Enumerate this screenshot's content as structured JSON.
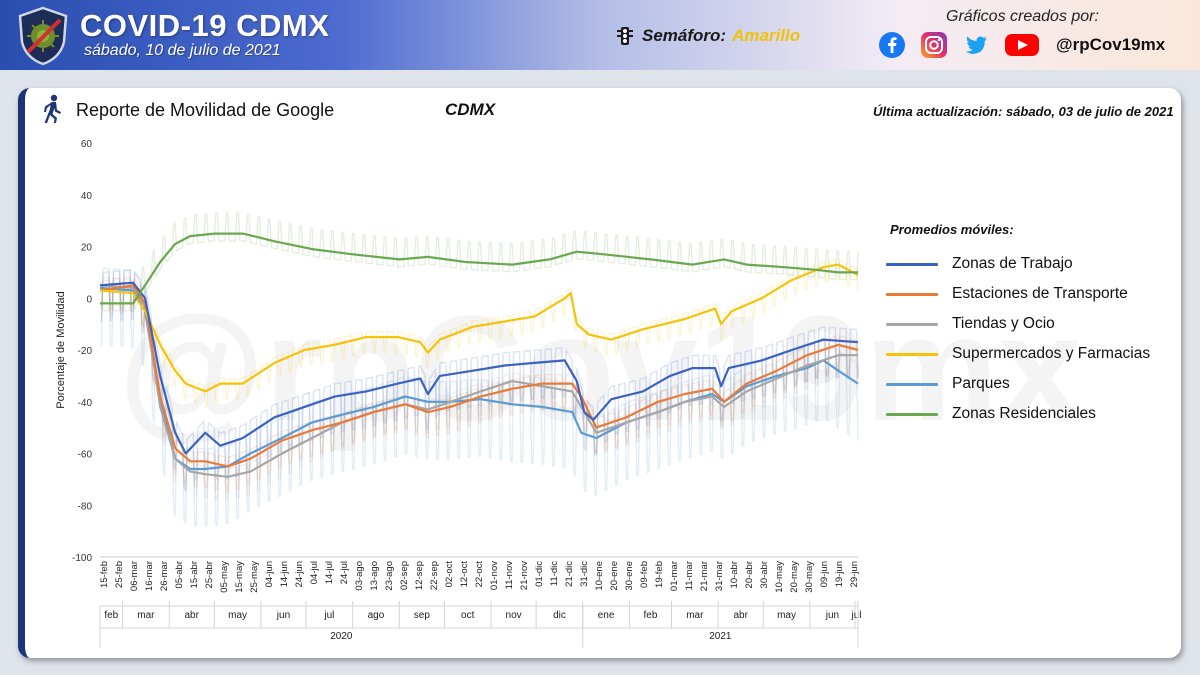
{
  "header": {
    "title": "COVID-19 CDMX",
    "date": "sábado, 10 de julio de 2021",
    "semaforo_label": "Semáforo:",
    "semaforo_value": "Amarillo",
    "credits": "Gráficos creados por:",
    "handle": "@rpCov19mx"
  },
  "card": {
    "title": "Reporte de Movilidad de Google",
    "region": "CDMX",
    "update": "Última actualización: sábado, 03 de julio de 2021",
    "watermark": "@rpCov19mx"
  },
  "colors": {
    "trabajo": "#3a62c0",
    "transporte": "#ea7a37",
    "tiendas": "#a6a6a6",
    "supermercados": "#f6c20c",
    "parques": "#5b9bd5",
    "residenciales": "#6aa84f"
  },
  "chart_data": {
    "type": "line",
    "title": "Reporte de Movilidad de Google",
    "ylabel": "Porcentaje de Movilidad",
    "xlabel": "",
    "ylim": [
      -100,
      60
    ],
    "yticks": [
      -100,
      -80,
      -60,
      -40,
      -20,
      0,
      20,
      40,
      60
    ],
    "date_range": [
      "2020-02-15",
      "2021-07-03"
    ],
    "x_ticks": [
      "15-feb",
      "25-feb",
      "06-mar",
      "16-mar",
      "26-mar",
      "05-abr",
      "15-abr",
      "25-abr",
      "05-may",
      "15-may",
      "25-may",
      "04-jun",
      "14-jun",
      "24-jun",
      "04-jul",
      "14-jul",
      "24-jul",
      "03-ago",
      "13-ago",
      "23-ago",
      "02-sep",
      "12-sep",
      "22-sep",
      "02-oct",
      "12-oct",
      "22-oct",
      "01-nov",
      "11-nov",
      "21-nov",
      "01-dic",
      "11-dic",
      "21-dic",
      "31-dic",
      "10-ene",
      "20-ene",
      "30-ene",
      "09-feb",
      "19-feb",
      "01-mar",
      "11-mar",
      "21-mar",
      "31-mar",
      "10-abr",
      "20-abr",
      "30-abr",
      "10-may",
      "20-may",
      "30-may",
      "09-jun",
      "19-jun",
      "29-jun"
    ],
    "months": [
      {
        "label": "feb",
        "start": "2020-02-15",
        "end": "2020-03-01"
      },
      {
        "label": "mar",
        "start": "2020-03-01",
        "end": "2020-04-01"
      },
      {
        "label": "abr",
        "start": "2020-04-01",
        "end": "2020-05-01"
      },
      {
        "label": "may",
        "start": "2020-05-01",
        "end": "2020-06-01"
      },
      {
        "label": "jun",
        "start": "2020-06-01",
        "end": "2020-07-01"
      },
      {
        "label": "jul",
        "start": "2020-07-01",
        "end": "2020-08-01"
      },
      {
        "label": "ago",
        "start": "2020-08-01",
        "end": "2020-09-01"
      },
      {
        "label": "sep",
        "start": "2020-09-01",
        "end": "2020-10-01"
      },
      {
        "label": "oct",
        "start": "2020-10-01",
        "end": "2020-11-01"
      },
      {
        "label": "nov",
        "start": "2020-11-01",
        "end": "2020-12-01"
      },
      {
        "label": "dic",
        "start": "2020-12-01",
        "end": "2021-01-01"
      },
      {
        "label": "ene",
        "start": "2021-01-01",
        "end": "2021-02-01"
      },
      {
        "label": "feb",
        "start": "2021-02-01",
        "end": "2021-03-01"
      },
      {
        "label": "mar",
        "start": "2021-03-01",
        "end": "2021-04-01"
      },
      {
        "label": "abr",
        "start": "2021-04-01",
        "end": "2021-05-01"
      },
      {
        "label": "may",
        "start": "2021-05-01",
        "end": "2021-06-01"
      },
      {
        "label": "jun",
        "start": "2021-06-01",
        "end": "2021-07-01"
      },
      {
        "label": "jul",
        "start": "2021-07-01",
        "end": "2021-07-04"
      }
    ],
    "years": [
      {
        "label": "2020",
        "start": "2020-02-15",
        "end": "2021-01-01"
      },
      {
        "label": "2021",
        "start": "2021-01-01",
        "end": "2021-07-04"
      }
    ],
    "legend_title": "Promedios móviles:",
    "series": [
      {
        "key": "trabajo",
        "name": "Zonas de Trabajo",
        "points": [
          [
            "2020-02-15",
            5
          ],
          [
            "2020-03-08",
            6
          ],
          [
            "2020-03-16",
            0
          ],
          [
            "2020-03-26",
            -30
          ],
          [
            "2020-04-05",
            -52
          ],
          [
            "2020-04-12",
            -60
          ],
          [
            "2020-04-25",
            -52
          ],
          [
            "2020-05-05",
            -57
          ],
          [
            "2020-05-20",
            -54
          ],
          [
            "2020-06-10",
            -46
          ],
          [
            "2020-06-30",
            -42
          ],
          [
            "2020-07-20",
            -38
          ],
          [
            "2020-08-10",
            -36
          ],
          [
            "2020-08-31",
            -33
          ],
          [
            "2020-09-15",
            -31
          ],
          [
            "2020-09-20",
            -37
          ],
          [
            "2020-09-28",
            -30
          ],
          [
            "2020-10-20",
            -28
          ],
          [
            "2020-11-10",
            -26
          ],
          [
            "2020-11-30",
            -25
          ],
          [
            "2020-12-20",
            -24
          ],
          [
            "2020-12-28",
            -32
          ],
          [
            "2021-01-02",
            -44
          ],
          [
            "2021-01-08",
            -47
          ],
          [
            "2021-01-20",
            -39
          ],
          [
            "2021-02-10",
            -36
          ],
          [
            "2021-02-28",
            -30
          ],
          [
            "2021-03-15",
            -27
          ],
          [
            "2021-03-30",
            -27
          ],
          [
            "2021-04-03",
            -34
          ],
          [
            "2021-04-08",
            -27
          ],
          [
            "2021-04-30",
            -24
          ],
          [
            "2021-05-20",
            -20
          ],
          [
            "2021-06-10",
            -16
          ],
          [
            "2021-07-03",
            -17
          ]
        ]
      },
      {
        "key": "transporte",
        "name": "Estaciones de Transporte",
        "points": [
          [
            "2020-02-15",
            3
          ],
          [
            "2020-03-08",
            5
          ],
          [
            "2020-03-16",
            -2
          ],
          [
            "2020-03-26",
            -38
          ],
          [
            "2020-04-05",
            -58
          ],
          [
            "2020-04-15",
            -63
          ],
          [
            "2020-04-25",
            -63
          ],
          [
            "2020-05-10",
            -65
          ],
          [
            "2020-05-25",
            -62
          ],
          [
            "2020-06-15",
            -55
          ],
          [
            "2020-07-05",
            -51
          ],
          [
            "2020-07-25",
            -48
          ],
          [
            "2020-08-15",
            -44
          ],
          [
            "2020-09-05",
            -41
          ],
          [
            "2020-09-20",
            -44
          ],
          [
            "2020-10-05",
            -42
          ],
          [
            "2020-10-25",
            -38
          ],
          [
            "2020-11-15",
            -35
          ],
          [
            "2020-12-05",
            -33
          ],
          [
            "2020-12-25",
            -33
          ],
          [
            "2020-12-31",
            -38
          ],
          [
            "2021-01-10",
            -50
          ],
          [
            "2021-01-30",
            -46
          ],
          [
            "2021-02-20",
            -40
          ],
          [
            "2021-03-10",
            -37
          ],
          [
            "2021-03-28",
            -35
          ],
          [
            "2021-04-05",
            -40
          ],
          [
            "2021-04-20",
            -33
          ],
          [
            "2021-05-10",
            -28
          ],
          [
            "2021-05-30",
            -22
          ],
          [
            "2021-06-20",
            -18
          ],
          [
            "2021-07-03",
            -20
          ]
        ]
      },
      {
        "key": "tiendas",
        "name": "Tiendas y Ocio",
        "points": [
          [
            "2020-02-15",
            5
          ],
          [
            "2020-03-08",
            4
          ],
          [
            "2020-03-16",
            -3
          ],
          [
            "2020-03-26",
            -42
          ],
          [
            "2020-04-05",
            -62
          ],
          [
            "2020-04-15",
            -67
          ],
          [
            "2020-04-25",
            -68
          ],
          [
            "2020-05-10",
            -69
          ],
          [
            "2020-05-25",
            -67
          ],
          [
            "2020-06-15",
            -60
          ],
          [
            "2020-07-05",
            -54
          ],
          [
            "2020-07-25",
            -48
          ],
          [
            "2020-08-15",
            -44
          ],
          [
            "2020-09-05",
            -41
          ],
          [
            "2020-09-20",
            -43
          ],
          [
            "2020-10-05",
            -40
          ],
          [
            "2020-10-25",
            -36
          ],
          [
            "2020-11-15",
            -32
          ],
          [
            "2020-12-05",
            -34
          ],
          [
            "2020-12-25",
            -36
          ],
          [
            "2020-12-31",
            -42
          ],
          [
            "2021-01-10",
            -52
          ],
          [
            "2021-01-30",
            -48
          ],
          [
            "2021-02-20",
            -44
          ],
          [
            "2021-03-10",
            -40
          ],
          [
            "2021-03-28",
            -38
          ],
          [
            "2021-04-05",
            -42
          ],
          [
            "2021-04-20",
            -36
          ],
          [
            "2021-05-10",
            -31
          ],
          [
            "2021-05-30",
            -26
          ],
          [
            "2021-06-20",
            -22
          ],
          [
            "2021-07-03",
            -22
          ]
        ]
      },
      {
        "key": "supermercados",
        "name": "Supermercados y Farmacias",
        "points": [
          [
            "2020-02-15",
            3
          ],
          [
            "2020-03-08",
            2
          ],
          [
            "2020-03-16",
            -5
          ],
          [
            "2020-03-26",
            -18
          ],
          [
            "2020-04-05",
            -28
          ],
          [
            "2020-04-12",
            -33
          ],
          [
            "2020-04-25",
            -36
          ],
          [
            "2020-05-05",
            -33
          ],
          [
            "2020-05-20",
            -33
          ],
          [
            "2020-06-10",
            -25
          ],
          [
            "2020-06-30",
            -20
          ],
          [
            "2020-07-20",
            -18
          ],
          [
            "2020-08-10",
            -15
          ],
          [
            "2020-08-31",
            -15
          ],
          [
            "2020-09-15",
            -17
          ],
          [
            "2020-09-20",
            -21
          ],
          [
            "2020-09-28",
            -16
          ],
          [
            "2020-10-20",
            -11
          ],
          [
            "2020-11-10",
            -9
          ],
          [
            "2020-11-30",
            -7
          ],
          [
            "2020-12-20",
            0
          ],
          [
            "2020-12-24",
            2
          ],
          [
            "2020-12-28",
            -10
          ],
          [
            "2021-01-05",
            -14
          ],
          [
            "2021-01-20",
            -16
          ],
          [
            "2021-02-10",
            -12
          ],
          [
            "2021-03-10",
            -8
          ],
          [
            "2021-03-30",
            -4
          ],
          [
            "2021-04-03",
            -10
          ],
          [
            "2021-04-10",
            -5
          ],
          [
            "2021-04-30",
            0
          ],
          [
            "2021-05-20",
            7
          ],
          [
            "2021-06-10",
            12
          ],
          [
            "2021-06-20",
            13
          ],
          [
            "2021-07-03",
            9
          ]
        ]
      },
      {
        "key": "parques",
        "name": "Parques",
        "points": [
          [
            "2020-02-15",
            4
          ],
          [
            "2020-03-08",
            3
          ],
          [
            "2020-03-16",
            -5
          ],
          [
            "2020-03-26",
            -40
          ],
          [
            "2020-04-05",
            -62
          ],
          [
            "2020-04-15",
            -66
          ],
          [
            "2020-04-25",
            -66
          ],
          [
            "2020-05-10",
            -65
          ],
          [
            "2020-05-25",
            -60
          ],
          [
            "2020-06-15",
            -54
          ],
          [
            "2020-07-05",
            -48
          ],
          [
            "2020-07-25",
            -45
          ],
          [
            "2020-08-15",
            -42
          ],
          [
            "2020-09-05",
            -38
          ],
          [
            "2020-09-20",
            -40
          ],
          [
            "2020-10-05",
            -40
          ],
          [
            "2020-10-25",
            -39
          ],
          [
            "2020-11-15",
            -41
          ],
          [
            "2020-12-05",
            -42
          ],
          [
            "2020-12-25",
            -44
          ],
          [
            "2020-12-31",
            -52
          ],
          [
            "2021-01-10",
            -54
          ],
          [
            "2021-01-30",
            -48
          ],
          [
            "2021-02-20",
            -44
          ],
          [
            "2021-03-10",
            -40
          ],
          [
            "2021-03-28",
            -37
          ],
          [
            "2021-04-05",
            -40
          ],
          [
            "2021-04-20",
            -34
          ],
          [
            "2021-05-10",
            -30
          ],
          [
            "2021-05-30",
            -27
          ],
          [
            "2021-06-10",
            -24
          ],
          [
            "2021-06-20",
            -28
          ],
          [
            "2021-07-03",
            -33
          ]
        ]
      },
      {
        "key": "residenciales",
        "name": "Zonas Residenciales",
        "points": [
          [
            "2020-02-15",
            -2
          ],
          [
            "2020-03-08",
            -2
          ],
          [
            "2020-03-16",
            5
          ],
          [
            "2020-03-26",
            14
          ],
          [
            "2020-04-05",
            21
          ],
          [
            "2020-04-15",
            24
          ],
          [
            "2020-05-01",
            25
          ],
          [
            "2020-05-20",
            25
          ],
          [
            "2020-06-10",
            22
          ],
          [
            "2020-07-05",
            19
          ],
          [
            "2020-08-01",
            17
          ],
          [
            "2020-09-01",
            15
          ],
          [
            "2020-09-20",
            16
          ],
          [
            "2020-10-15",
            14
          ],
          [
            "2020-11-15",
            13
          ],
          [
            "2020-12-10",
            15
          ],
          [
            "2020-12-28",
            18
          ],
          [
            "2021-01-15",
            17
          ],
          [
            "2021-02-15",
            15
          ],
          [
            "2021-03-15",
            13
          ],
          [
            "2021-04-05",
            15
          ],
          [
            "2021-04-20",
            13
          ],
          [
            "2021-05-15",
            12
          ],
          [
            "2021-06-05",
            11
          ],
          [
            "2021-06-20",
            10
          ],
          [
            "2021-07-03",
            10
          ]
        ]
      }
    ]
  }
}
